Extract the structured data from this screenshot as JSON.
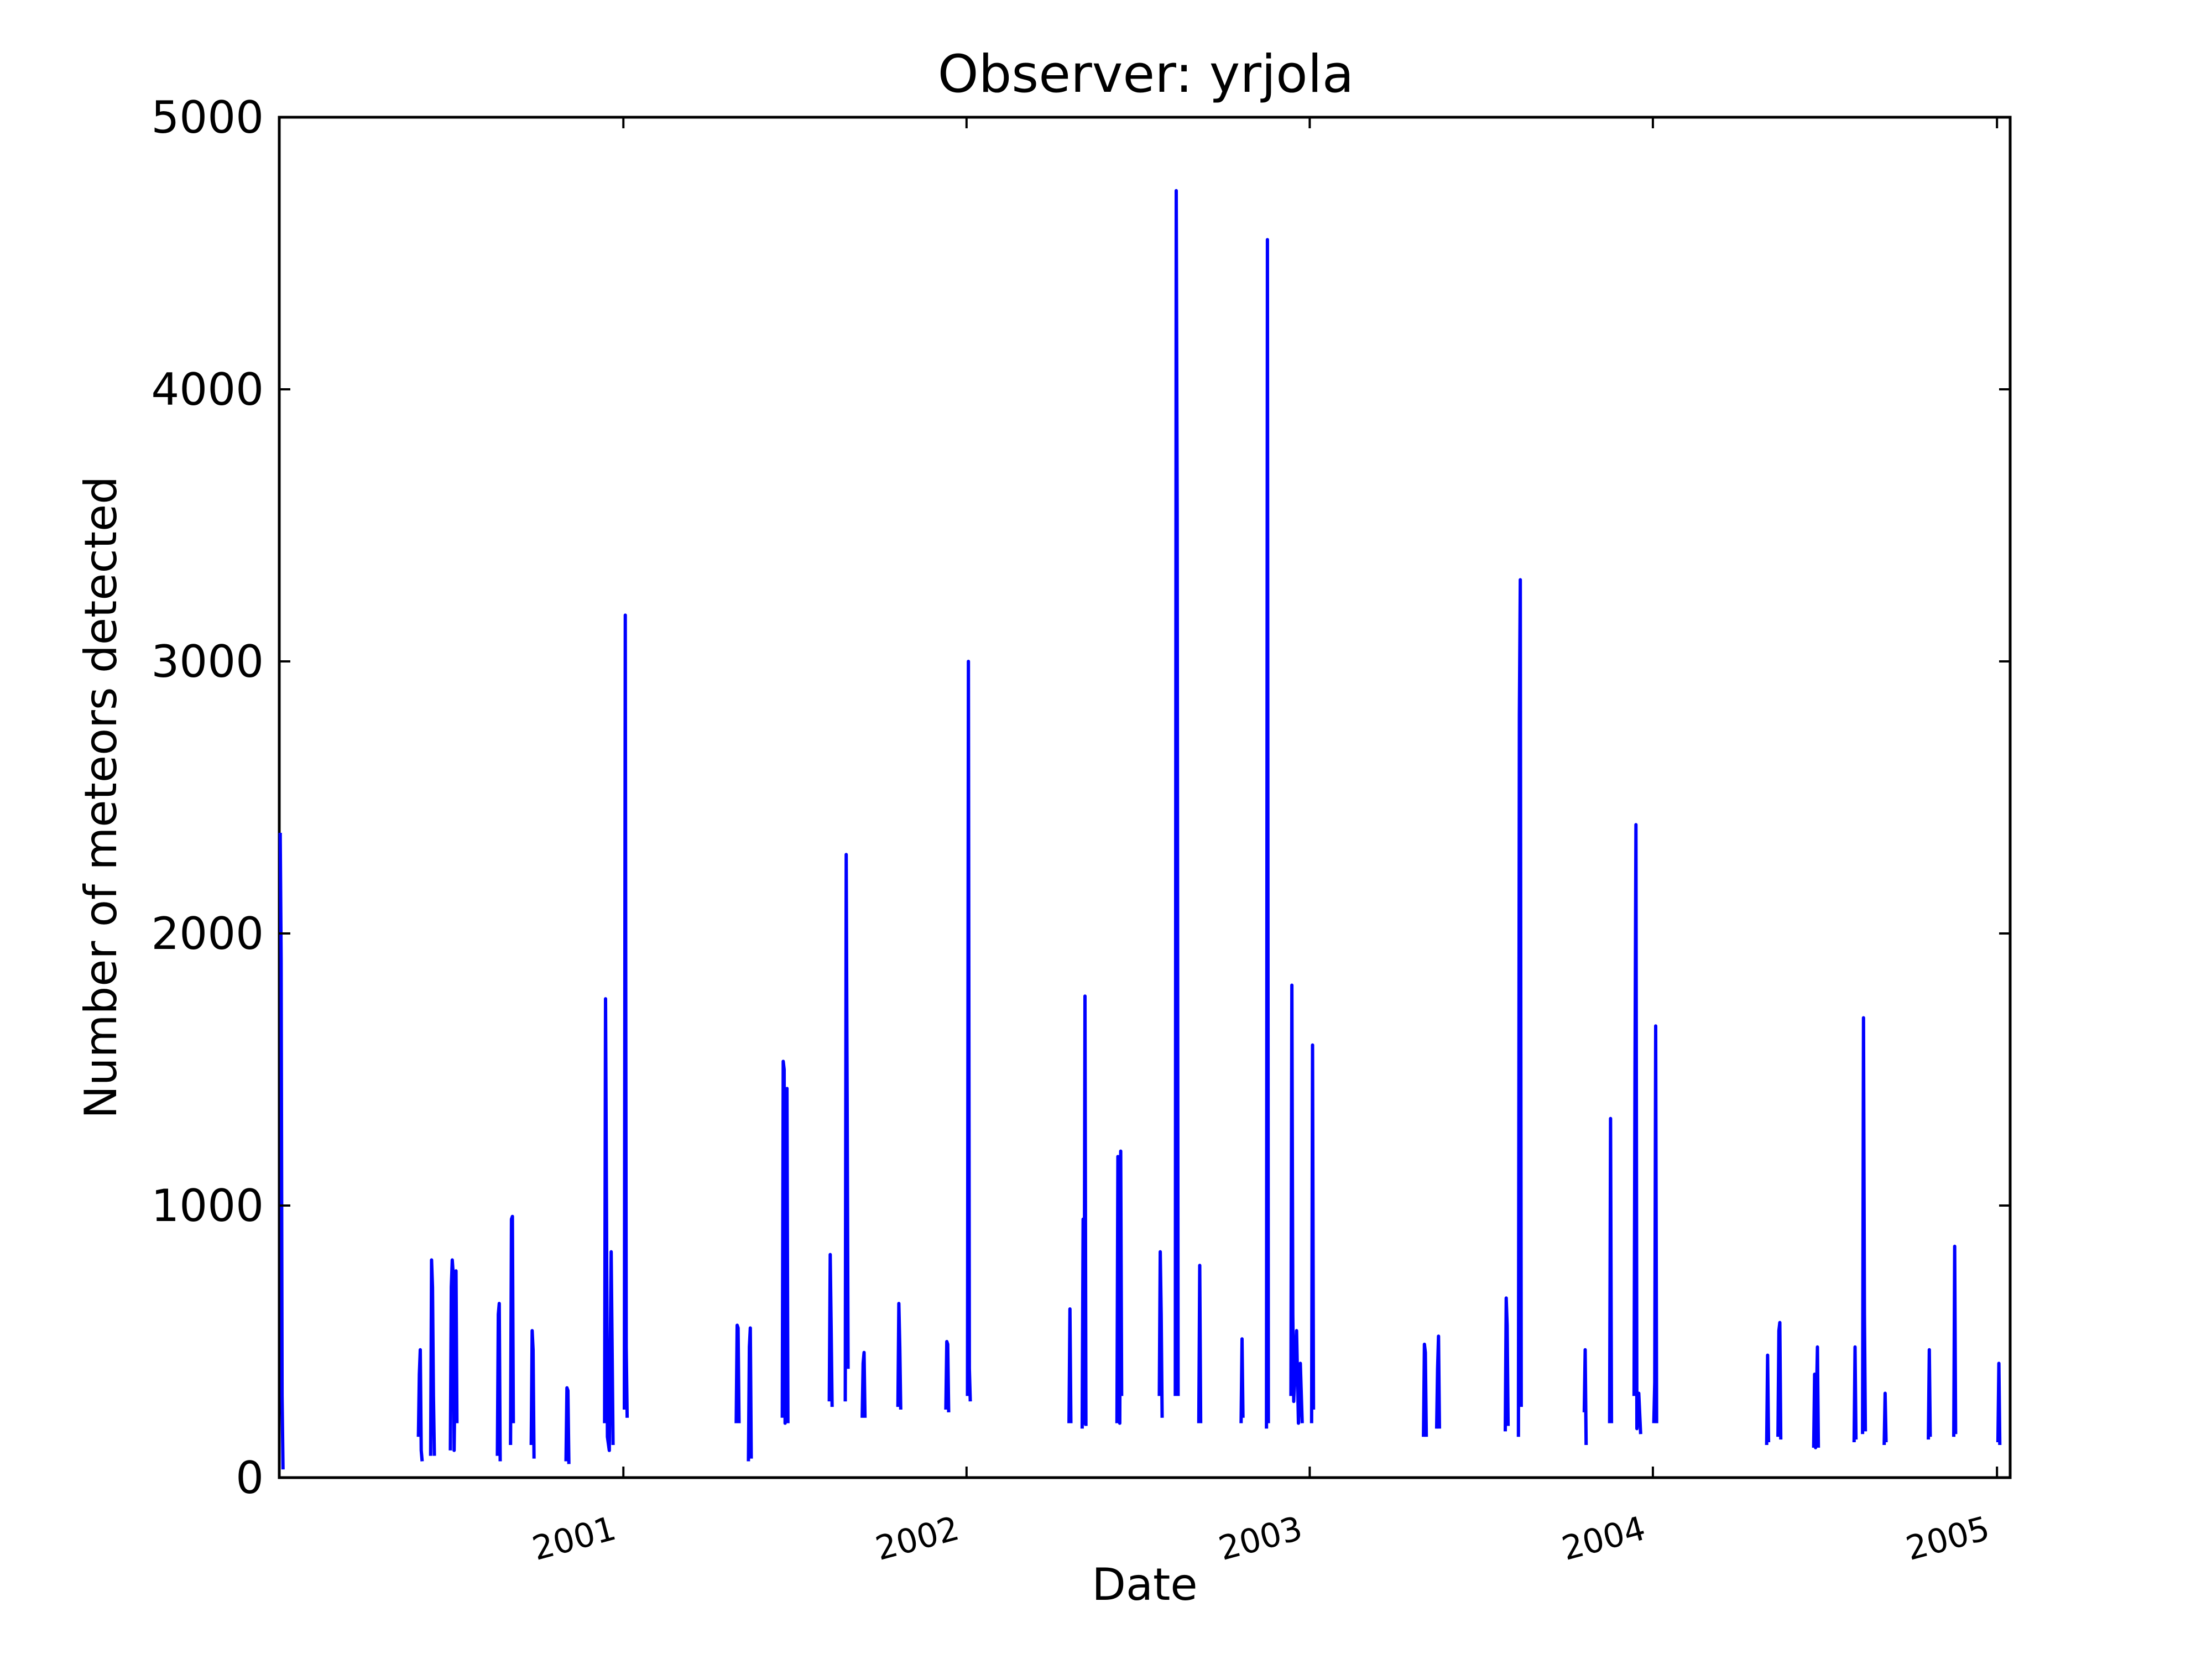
{
  "chart_data": {
    "type": "line",
    "title": "Observer: yrjola",
    "xlabel": "Date",
    "ylabel": "Number of meteors detected",
    "xlim": [
      "2000-01-01",
      "2005-01-15"
    ],
    "ylim": [
      0,
      5000
    ],
    "x_ticks": [
      "2001",
      "2002",
      "2003",
      "2004",
      "2005"
    ],
    "y_ticks": [
      "0",
      "1000",
      "2000",
      "3000",
      "4000",
      "5000"
    ],
    "grid": false,
    "legend": "none",
    "line_color": "#0000ff",
    "series": [
      {
        "values": [
          [
            "2000-01-02",
            2370
          ],
          [
            "2000-01-03",
            1900
          ],
          [
            "2000-01-04",
            300
          ],
          [
            "2000-01-05",
            30
          ],
          [
            "2000-05-28",
            150
          ],
          [
            "2000-05-29",
            380
          ],
          [
            "2000-05-30",
            470
          ],
          [
            "2000-05-31",
            100
          ],
          [
            "2000-06-01",
            60
          ],
          [
            "2000-06-10",
            80
          ],
          [
            "2000-06-11",
            800
          ],
          [
            "2000-06-12",
            700
          ],
          [
            "2000-06-13",
            300
          ],
          [
            "2000-06-14",
            80
          ],
          [
            "2000-07-01",
            100
          ],
          [
            "2000-07-02",
            700
          ],
          [
            "2000-07-03",
            800
          ],
          [
            "2000-07-04",
            750
          ],
          [
            "2000-07-05",
            100
          ],
          [
            "2000-07-06",
            400
          ],
          [
            "2000-07-07",
            760
          ],
          [
            "2000-07-08",
            200
          ],
          [
            "2000-08-20",
            80
          ],
          [
            "2000-08-21",
            600
          ],
          [
            "2000-08-22",
            640
          ],
          [
            "2000-08-23",
            60
          ],
          [
            "2000-09-03",
            120
          ],
          [
            "2000-09-04",
            950
          ],
          [
            "2000-09-05",
            960
          ],
          [
            "2000-09-06",
            200
          ],
          [
            "2000-09-25",
            120
          ],
          [
            "2000-09-26",
            540
          ],
          [
            "2000-09-27",
            470
          ],
          [
            "2000-09-28",
            70
          ],
          [
            "2000-11-01",
            60
          ],
          [
            "2000-11-02",
            330
          ],
          [
            "2000-11-03",
            320
          ],
          [
            "2000-11-04",
            50
          ],
          [
            "2000-12-12",
            200
          ],
          [
            "2000-12-13",
            1760
          ],
          [
            "2000-12-14",
            1000
          ],
          [
            "2000-12-15",
            150
          ],
          [
            "2000-12-17",
            100
          ],
          [
            "2000-12-19",
            830
          ],
          [
            "2000-12-21",
            120
          ],
          [
            "2001-01-02",
            250
          ],
          [
            "2001-01-03",
            3170
          ],
          [
            "2001-01-04",
            480
          ],
          [
            "2001-01-05",
            220
          ],
          [
            "2001-05-01",
            200
          ],
          [
            "2001-05-02",
            560
          ],
          [
            "2001-05-03",
            550
          ],
          [
            "2001-05-04",
            200
          ],
          [
            "2001-05-14",
            60
          ],
          [
            "2001-05-15",
            480
          ],
          [
            "2001-05-16",
            550
          ],
          [
            "2001-05-17",
            70
          ],
          [
            "2001-06-19",
            220
          ],
          [
            "2001-06-20",
            1530
          ],
          [
            "2001-06-21",
            1500
          ],
          [
            "2001-06-22",
            200
          ],
          [
            "2001-06-23",
            1420
          ],
          [
            "2001-06-24",
            1430
          ],
          [
            "2001-06-25",
            200
          ],
          [
            "2001-08-08",
            280
          ],
          [
            "2001-08-09",
            820
          ],
          [
            "2001-08-10",
            550
          ],
          [
            "2001-08-11",
            260
          ],
          [
            "2001-08-25",
            280
          ],
          [
            "2001-08-26",
            2290
          ],
          [
            "2001-08-27",
            1400
          ],
          [
            "2001-08-28",
            400
          ],
          [
            "2001-09-12",
            220
          ],
          [
            "2001-09-13",
            420
          ],
          [
            "2001-09-14",
            460
          ],
          [
            "2001-09-15",
            220
          ],
          [
            "2001-10-20",
            260
          ],
          [
            "2001-10-21",
            640
          ],
          [
            "2001-10-22",
            480
          ],
          [
            "2001-10-23",
            250
          ],
          [
            "2001-12-10",
            250
          ],
          [
            "2001-12-11",
            500
          ],
          [
            "2001-12-12",
            490
          ],
          [
            "2001-12-13",
            240
          ],
          [
            "2002-01-02",
            300
          ],
          [
            "2002-01-03",
            3000
          ],
          [
            "2002-01-04",
            400
          ],
          [
            "2002-01-05",
            280
          ],
          [
            "2002-04-20",
            200
          ],
          [
            "2002-04-21",
            620
          ],
          [
            "2002-04-22",
            200
          ],
          [
            "2002-05-04",
            180
          ],
          [
            "2002-05-05",
            950
          ],
          [
            "2002-05-06",
            200
          ],
          [
            "2002-05-07",
            1770
          ],
          [
            "2002-05-08",
            190
          ],
          [
            "2002-06-10",
            200
          ],
          [
            "2002-06-11",
            1180
          ],
          [
            "2002-06-12",
            1100
          ],
          [
            "2002-06-13",
            200
          ],
          [
            "2002-06-14",
            1200
          ],
          [
            "2002-06-15",
            300
          ],
          [
            "2002-07-25",
            300
          ],
          [
            "2002-07-26",
            830
          ],
          [
            "2002-07-27",
            600
          ],
          [
            "2002-07-28",
            220
          ],
          [
            "2002-08-11",
            300
          ],
          [
            "2002-08-12",
            4730
          ],
          [
            "2002-08-13",
            3550
          ],
          [
            "2002-08-14",
            300
          ],
          [
            "2002-09-05",
            200
          ],
          [
            "2002-09-06",
            780
          ],
          [
            "2002-09-07",
            200
          ],
          [
            "2002-10-20",
            200
          ],
          [
            "2002-10-21",
            510
          ],
          [
            "2002-10-22",
            220
          ],
          [
            "2002-11-16",
            180
          ],
          [
            "2002-11-17",
            4550
          ],
          [
            "2002-11-18",
            200
          ],
          [
            "2002-12-12",
            300
          ],
          [
            "2002-12-13",
            1810
          ],
          [
            "2002-12-14",
            600
          ],
          [
            "2002-12-15",
            280
          ],
          [
            "2002-12-18",
            540
          ],
          [
            "2002-12-20",
            200
          ],
          [
            "2002-12-22",
            420
          ],
          [
            "2002-12-24",
            200
          ],
          [
            "2003-01-03",
            200
          ],
          [
            "2003-01-04",
            1590
          ],
          [
            "2003-01-05",
            250
          ],
          [
            "2003-05-02",
            150
          ],
          [
            "2003-05-03",
            490
          ],
          [
            "2003-05-04",
            460
          ],
          [
            "2003-05-05",
            150
          ],
          [
            "2003-05-16",
            180
          ],
          [
            "2003-05-17",
            400
          ],
          [
            "2003-05-18",
            520
          ],
          [
            "2003-05-19",
            180
          ],
          [
            "2003-07-28",
            170
          ],
          [
            "2003-07-29",
            660
          ],
          [
            "2003-07-30",
            560
          ],
          [
            "2003-07-31",
            190
          ],
          [
            "2003-08-11",
            150
          ],
          [
            "2003-08-12",
            2800
          ],
          [
            "2003-08-13",
            3300
          ],
          [
            "2003-08-14",
            260
          ],
          [
            "2003-10-20",
            240
          ],
          [
            "2003-10-21",
            470
          ],
          [
            "2003-10-22",
            120
          ],
          [
            "2003-11-16",
            200
          ],
          [
            "2003-11-17",
            1320
          ],
          [
            "2003-11-18",
            200
          ],
          [
            "2003-12-12",
            300
          ],
          [
            "2003-12-13",
            1500
          ],
          [
            "2003-12-14",
            2400
          ],
          [
            "2003-12-15",
            180
          ],
          [
            "2003-12-17",
            310
          ],
          [
            "2003-12-19",
            160
          ],
          [
            "2004-01-02",
            200
          ],
          [
            "2004-01-03",
            350
          ],
          [
            "2004-01-04",
            1660
          ],
          [
            "2004-01-05",
            200
          ],
          [
            "2004-05-01",
            120
          ],
          [
            "2004-05-02",
            450
          ],
          [
            "2004-05-03",
            130
          ],
          [
            "2004-05-13",
            150
          ],
          [
            "2004-05-14",
            540
          ],
          [
            "2004-05-15",
            570
          ],
          [
            "2004-05-16",
            140
          ],
          [
            "2004-06-20",
            110
          ],
          [
            "2004-06-21",
            380
          ],
          [
            "2004-06-22",
            110
          ],
          [
            "2004-06-24",
            480
          ],
          [
            "2004-06-25",
            110
          ],
          [
            "2004-08-02",
            130
          ],
          [
            "2004-08-03",
            480
          ],
          [
            "2004-08-04",
            140
          ],
          [
            "2004-08-11",
            160
          ],
          [
            "2004-08-12",
            1690
          ],
          [
            "2004-08-13",
            600
          ],
          [
            "2004-08-14",
            170
          ],
          [
            "2004-09-03",
            120
          ],
          [
            "2004-09-04",
            310
          ],
          [
            "2004-09-05",
            130
          ],
          [
            "2004-10-20",
            140
          ],
          [
            "2004-10-21",
            470
          ],
          [
            "2004-10-22",
            150
          ],
          [
            "2004-11-16",
            150
          ],
          [
            "2004-11-17",
            850
          ],
          [
            "2004-11-18",
            160
          ],
          [
            "2005-01-02",
            130
          ],
          [
            "2005-01-03",
            420
          ],
          [
            "2005-01-04",
            120
          ]
        ]
      }
    ]
  }
}
